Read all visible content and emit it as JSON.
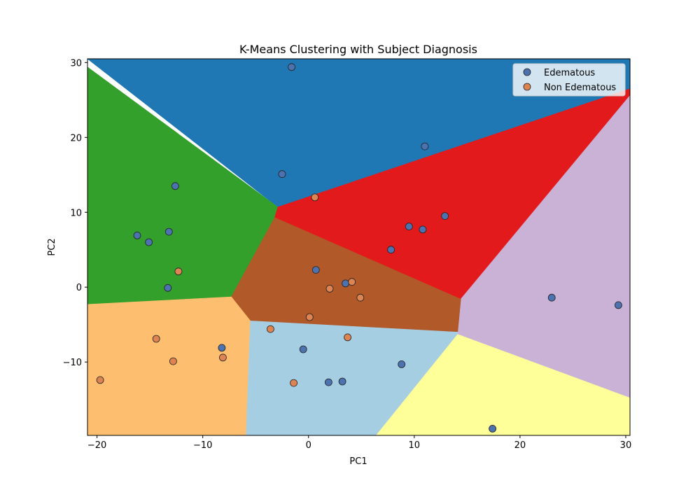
{
  "chart_data": {
    "type": "scatter",
    "title": "K-Means Clustering with Subject Diagnosis",
    "xlabel": "PC1",
    "ylabel": "PC2",
    "xlim": [
      -20.9,
      30.4
    ],
    "ylim": [
      -19.8,
      30.5
    ],
    "xticks": [
      -20,
      -10,
      0,
      10,
      20,
      30
    ],
    "xtick_labels": [
      "−20",
      "−10",
      "0",
      "10",
      "20",
      "30"
    ],
    "yticks": [
      -10,
      0,
      10,
      20,
      30
    ],
    "ytick_labels": [
      "−10",
      "0",
      "10",
      "20",
      "30"
    ],
    "grid": false,
    "legend_position": "top-right",
    "regions": [
      {
        "color": "#1f77b4",
        "points": [
          [
            -20.9,
            30.5
          ],
          [
            30.4,
            30.5
          ],
          [
            30.4,
            26.5
          ],
          [
            -2.9,
            10.7
          ],
          [
            -20.9,
            30.5
          ]
        ]
      },
      {
        "color": "#33a02c",
        "points": [
          [
            -20.9,
            29.4
          ],
          [
            -2.9,
            10.7
          ],
          [
            -3.2,
            9.3
          ],
          [
            -7.3,
            -1.3
          ],
          [
            -20.9,
            -2.3
          ]
        ]
      },
      {
        "color": "#e31a1c",
        "points": [
          [
            -2.9,
            10.7
          ],
          [
            30.4,
            26.5
          ],
          [
            30.4,
            25.6
          ],
          [
            14.4,
            -1.6
          ],
          [
            -3.2,
            9.3
          ]
        ]
      },
      {
        "color": "#cab2d6",
        "points": [
          [
            30.4,
            25.6
          ],
          [
            30.4,
            -14.8
          ],
          [
            14.1,
            -6.3
          ],
          [
            14.4,
            -1.6
          ]
        ]
      },
      {
        "color": "#b15928",
        "points": [
          [
            -3.2,
            9.3
          ],
          [
            14.4,
            -1.6
          ],
          [
            14.1,
            -6.0
          ],
          [
            -5.5,
            -4.5
          ],
          [
            -7.3,
            -1.3
          ]
        ]
      },
      {
        "color": "#fdbf6f",
        "points": [
          [
            -20.9,
            -2.3
          ],
          [
            -7.3,
            -1.3
          ],
          [
            -5.5,
            -4.5
          ],
          [
            -5.9,
            -19.8
          ],
          [
            -20.9,
            -19.8
          ]
        ]
      },
      {
        "color": "#a6cee3",
        "points": [
          [
            -5.5,
            -4.5
          ],
          [
            14.1,
            -6.0
          ],
          [
            14.1,
            -6.3
          ],
          [
            6.4,
            -19.8
          ],
          [
            -5.9,
            -19.8
          ]
        ]
      },
      {
        "color": "#ffff99",
        "points": [
          [
            14.1,
            -6.3
          ],
          [
            30.4,
            -14.8
          ],
          [
            30.4,
            -19.8
          ],
          [
            6.4,
            -19.8
          ]
        ]
      }
    ],
    "series": [
      {
        "name": "Edematous",
        "color": "#4c72b0",
        "points": [
          [
            -1.6,
            29.4
          ],
          [
            11.0,
            18.8
          ],
          [
            -2.5,
            15.1
          ],
          [
            -12.6,
            13.5
          ],
          [
            -16.2,
            6.9
          ],
          [
            -15.1,
            6.0
          ],
          [
            -13.2,
            7.4
          ],
          [
            -13.3,
            -0.1
          ],
          [
            9.5,
            8.1
          ],
          [
            10.8,
            7.7
          ],
          [
            12.9,
            9.5
          ],
          [
            7.8,
            5.0
          ],
          [
            0.7,
            2.3
          ],
          [
            3.5,
            0.5
          ],
          [
            23.0,
            -1.4
          ],
          [
            29.3,
            -2.4
          ],
          [
            -8.2,
            -8.1
          ],
          [
            -0.5,
            -8.3
          ],
          [
            8.8,
            -10.3
          ],
          [
            1.9,
            -12.7
          ],
          [
            3.2,
            -12.6
          ],
          [
            17.4,
            -18.9
          ]
        ]
      },
      {
        "name": "Non Edematous",
        "color": "#dd8452",
        "points": [
          [
            0.6,
            12.0
          ],
          [
            -12.3,
            2.1
          ],
          [
            4.1,
            0.7
          ],
          [
            2.0,
            -0.2
          ],
          [
            4.9,
            -1.4
          ],
          [
            0.1,
            -4.0
          ],
          [
            -3.6,
            -5.6
          ],
          [
            3.7,
            -6.7
          ],
          [
            -14.4,
            -6.9
          ],
          [
            -12.8,
            -9.9
          ],
          [
            -8.1,
            -9.4
          ],
          [
            -19.7,
            -12.4
          ],
          [
            -1.4,
            -12.8
          ]
        ]
      }
    ]
  }
}
